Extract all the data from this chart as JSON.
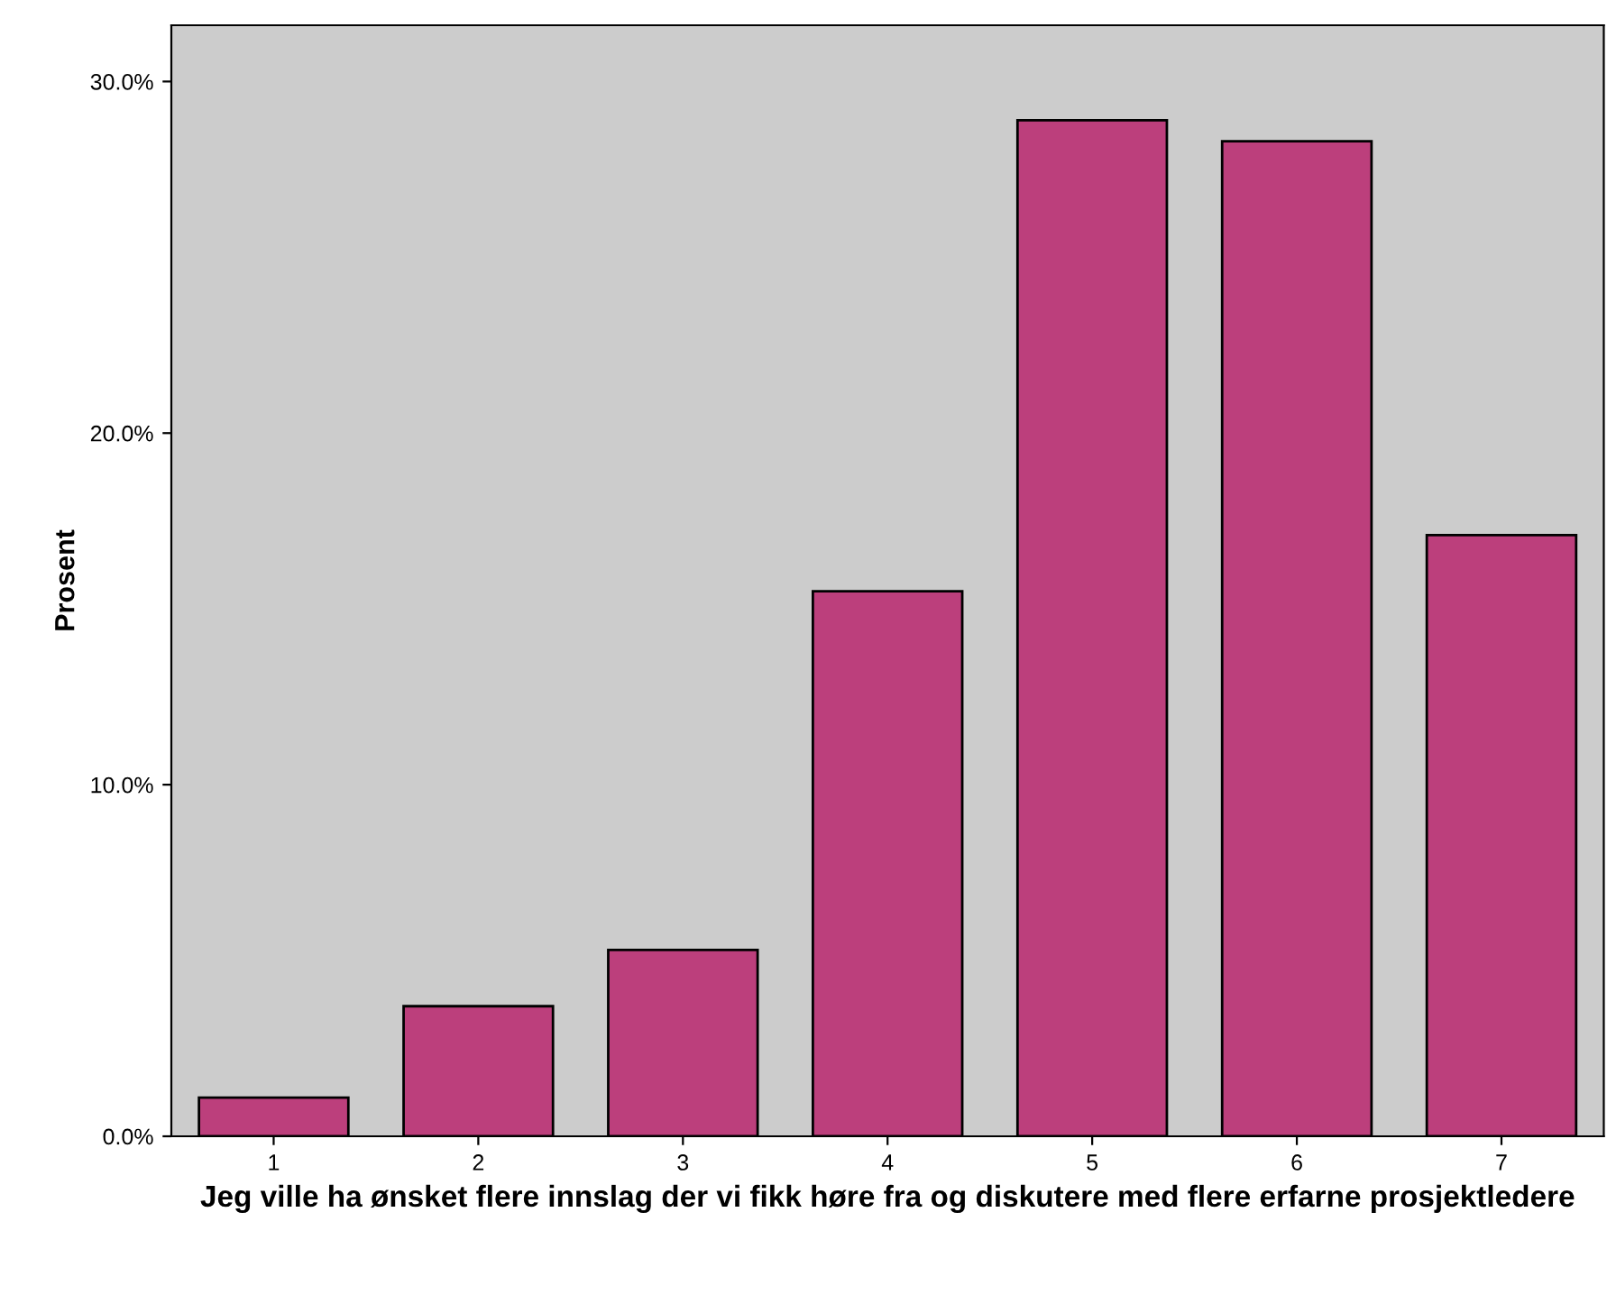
{
  "chart_data": {
    "type": "bar",
    "xlabel": "Jeg ville ha ønsket flere innslag der vi fikk høre fra og diskutere med flere erfarne prosjektledere",
    "ylabel": "Prosent",
    "categories": [
      "1",
      "2",
      "3",
      "4",
      "5",
      "6",
      "7"
    ],
    "values": [
      1.1,
      3.7,
      5.3,
      15.5,
      28.9,
      28.3,
      17.1
    ],
    "color": "#bc3f7c",
    "ylim": [
      0,
      31.6
    ],
    "yticks": [
      {
        "value": 0,
        "label": "0.0%"
      },
      {
        "value": 10,
        "label": "10.0%"
      },
      {
        "value": 20,
        "label": "20.0%"
      },
      {
        "value": 30,
        "label": "30.0%"
      }
    ],
    "grid": false
  }
}
